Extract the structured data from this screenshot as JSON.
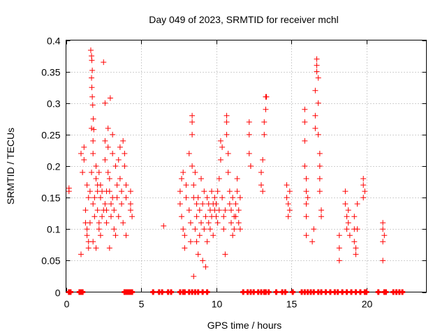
{
  "chart_data": {
    "type": "scatter",
    "title": "Day 049 of 2023, SRMTID for receiver mchl",
    "xlabel": "GPS time / hours",
    "ylabel": "SRMTID / TECUs",
    "xlim": [
      0,
      24
    ],
    "ylim": [
      0,
      0.4
    ],
    "xticks": [
      0,
      5,
      10,
      15,
      20
    ],
    "yticks": [
      0,
      0.05,
      0.1,
      0.15,
      0.2,
      0.25,
      0.3,
      0.35,
      0.4
    ],
    "xtick_labels": [
      "0",
      "5",
      "10",
      "15",
      "20"
    ],
    "ytick_labels": [
      "0",
      "0.05",
      "0.1",
      "0.15",
      "0.2",
      "0.25",
      "0.3",
      "0.35",
      "0.4"
    ],
    "grid": true,
    "marker": "+",
    "color": "#ff0000",
    "series": [
      {
        "name": "SRMTID",
        "points": [
          [
            0.2,
            0.165
          ],
          [
            0.2,
            0.16
          ],
          [
            1.0,
            0.06
          ],
          [
            1.0,
            0.22
          ],
          [
            1.1,
            0.19
          ],
          [
            1.2,
            0.21
          ],
          [
            1.2,
            0.23
          ],
          [
            1.3,
            0.13
          ],
          [
            1.3,
            0.11
          ],
          [
            1.4,
            0.1
          ],
          [
            1.4,
            0.09
          ],
          [
            1.4,
            0.17
          ],
          [
            1.5,
            0.07
          ],
          [
            1.5,
            0.08
          ],
          [
            1.5,
            0.15
          ],
          [
            1.6,
            0.11
          ],
          [
            1.6,
            0.16
          ],
          [
            1.7,
            0.19
          ],
          [
            1.7,
            0.26
          ],
          [
            1.8,
            0.08
          ],
          [
            1.8,
            0.14
          ],
          [
            1.8,
            0.22
          ],
          [
            1.8,
            0.24
          ],
          [
            1.65,
            0.384
          ],
          [
            1.7,
            0.375
          ],
          [
            1.72,
            0.368
          ],
          [
            1.75,
            0.352
          ],
          [
            1.7,
            0.34
          ],
          [
            1.72,
            0.325
          ],
          [
            1.75,
            0.31
          ],
          [
            1.78,
            0.297
          ],
          [
            1.82,
            0.275
          ],
          [
            1.85,
            0.258
          ],
          [
            1.9,
            0.12
          ],
          [
            1.9,
            0.15
          ],
          [
            2.0,
            0.18
          ],
          [
            2.0,
            0.2
          ],
          [
            2.0,
            0.07
          ],
          [
            2.1,
            0.17
          ],
          [
            2.1,
            0.16
          ],
          [
            2.1,
            0.13
          ],
          [
            2.2,
            0.19
          ],
          [
            2.2,
            0.11
          ],
          [
            2.2,
            0.1
          ],
          [
            2.3,
            0.15
          ],
          [
            2.3,
            0.17
          ],
          [
            2.3,
            0.09
          ],
          [
            2.4,
            0.12
          ],
          [
            2.4,
            0.16
          ],
          [
            2.5,
            0.13
          ],
          [
            2.5,
            0.365
          ],
          [
            2.6,
            0.3
          ],
          [
            2.6,
            0.24
          ],
          [
            2.6,
            0.21
          ],
          [
            2.6,
            0.14
          ],
          [
            2.7,
            0.13
          ],
          [
            2.7,
            0.16
          ],
          [
            2.7,
            0.11
          ],
          [
            2.8,
            0.26
          ],
          [
            2.8,
            0.23
          ],
          [
            2.8,
            0.19
          ],
          [
            2.9,
            0.18
          ],
          [
            2.9,
            0.16
          ],
          [
            2.9,
            0.07
          ],
          [
            2.95,
            0.308
          ],
          [
            3.0,
            0.12
          ],
          [
            3.0,
            0.14
          ],
          [
            3.1,
            0.25
          ],
          [
            3.1,
            0.22
          ],
          [
            3.1,
            0.15
          ],
          [
            3.2,
            0.13
          ],
          [
            3.2,
            0.1
          ],
          [
            3.3,
            0.09
          ],
          [
            3.3,
            0.2
          ],
          [
            3.4,
            0.17
          ],
          [
            3.4,
            0.15
          ],
          [
            3.5,
            0.12
          ],
          [
            3.5,
            0.21
          ],
          [
            3.6,
            0.23
          ],
          [
            3.6,
            0.18
          ],
          [
            3.7,
            0.16
          ],
          [
            3.7,
            0.14
          ],
          [
            3.8,
            0.11
          ],
          [
            3.8,
            0.24
          ],
          [
            3.9,
            0.22
          ],
          [
            3.9,
            0.2
          ],
          [
            4.0,
            0.17
          ],
          [
            4.0,
            0.15
          ],
          [
            4.0,
            0.09
          ],
          [
            4.3,
            0.16
          ],
          [
            4.3,
            0.13
          ],
          [
            4.3,
            0.14
          ],
          [
            4.4,
            0.12
          ],
          [
            6.5,
            0.105
          ],
          [
            7.6,
            0.16
          ],
          [
            7.6,
            0.14
          ],
          [
            7.7,
            0.12
          ],
          [
            7.7,
            0.18
          ],
          [
            7.8,
            0.19
          ],
          [
            7.8,
            0.1
          ],
          [
            7.9,
            0.09
          ],
          [
            7.9,
            0.07
          ],
          [
            8.0,
            0.17
          ],
          [
            8.0,
            0.15
          ],
          [
            8.2,
            0.22
          ],
          [
            8.2,
            0.13
          ],
          [
            8.3,
            0.08
          ],
          [
            8.3,
            0.11
          ],
          [
            8.4,
            0.25
          ],
          [
            8.4,
            0.28
          ],
          [
            8.4,
            0.27
          ],
          [
            8.4,
            0.2
          ],
          [
            8.5,
            0.15
          ],
          [
            8.5,
            0.17
          ],
          [
            8.5,
            0.025
          ],
          [
            8.6,
            0.19
          ],
          [
            8.6,
            0.1
          ],
          [
            8.7,
            0.14
          ],
          [
            8.7,
            0.12
          ],
          [
            8.7,
            0.08
          ],
          [
            8.8,
            0.06
          ],
          [
            8.8,
            0.15
          ],
          [
            8.9,
            0.13
          ],
          [
            8.9,
            0.09
          ],
          [
            9.0,
            0.11
          ],
          [
            9.0,
            0.18
          ],
          [
            9.1,
            0.05
          ],
          [
            9.1,
            0.14
          ],
          [
            9.2,
            0.16
          ],
          [
            9.2,
            0.1
          ],
          [
            9.3,
            0.12
          ],
          [
            9.3,
            0.04
          ],
          [
            9.4,
            0.15
          ],
          [
            9.4,
            0.08
          ],
          [
            9.5,
            0.14
          ],
          [
            9.5,
            0.11
          ],
          [
            9.6,
            0.13
          ],
          [
            9.6,
            0.1
          ],
          [
            9.7,
            0.12
          ],
          [
            9.7,
            0.16
          ],
          [
            9.8,
            0.14
          ],
          [
            9.8,
            0.09
          ],
          [
            9.9,
            0.13
          ],
          [
            9.9,
            0.15
          ],
          [
            10.0,
            0.12
          ],
          [
            10.0,
            0.14
          ],
          [
            10.1,
            0.11
          ],
          [
            10.1,
            0.16
          ],
          [
            10.2,
            0.13
          ],
          [
            10.2,
            0.18
          ],
          [
            10.3,
            0.21
          ],
          [
            10.3,
            0.24
          ],
          [
            10.4,
            0.23
          ],
          [
            10.4,
            0.15
          ],
          [
            10.5,
            0.12
          ],
          [
            10.5,
            0.1
          ],
          [
            10.6,
            0.13
          ],
          [
            10.6,
            0.06
          ],
          [
            10.7,
            0.28
          ],
          [
            10.7,
            0.27
          ],
          [
            10.7,
            0.25
          ],
          [
            10.8,
            0.22
          ],
          [
            10.8,
            0.19
          ],
          [
            10.9,
            0.16
          ],
          [
            10.9,
            0.14
          ],
          [
            11.0,
            0.13
          ],
          [
            11.0,
            0.11
          ],
          [
            11.1,
            0.15
          ],
          [
            11.1,
            0.09
          ],
          [
            11.2,
            0.12
          ],
          [
            11.2,
            0.1
          ],
          [
            11.3,
            0.14
          ],
          [
            11.3,
            0.12
          ],
          [
            11.4,
            0.18
          ],
          [
            11.4,
            0.16
          ],
          [
            11.5,
            0.13
          ],
          [
            11.5,
            0.11
          ],
          [
            11.6,
            0.15
          ],
          [
            11.6,
            0.1
          ],
          [
            12.2,
            0.27
          ],
          [
            12.2,
            0.25
          ],
          [
            12.2,
            0.22
          ],
          [
            12.3,
            0.2
          ],
          [
            12.3,
            0.2
          ],
          [
            13.0,
            0.17
          ],
          [
            13.0,
            0.19
          ],
          [
            13.1,
            0.16
          ],
          [
            13.1,
            0.21
          ],
          [
            13.2,
            0.25
          ],
          [
            13.2,
            0.27
          ],
          [
            13.3,
            0.29
          ],
          [
            13.3,
            0.31
          ],
          [
            13.35,
            0.31
          ],
          [
            14.7,
            0.17
          ],
          [
            14.7,
            0.15
          ],
          [
            14.8,
            0.14
          ],
          [
            14.8,
            0.12
          ],
          [
            14.9,
            0.16
          ],
          [
            14.9,
            0.13
          ],
          [
            15.9,
            0.29
          ],
          [
            15.9,
            0.27
          ],
          [
            15.9,
            0.24
          ],
          [
            15.9,
            0.2
          ],
          [
            16.0,
            0.18
          ],
          [
            16.0,
            0.16
          ],
          [
            16.0,
            0.14
          ],
          [
            16.0,
            0.12
          ],
          [
            16.0,
            0.09
          ],
          [
            16.1,
            0.15
          ],
          [
            16.4,
            0.08
          ],
          [
            16.5,
            0.1
          ],
          [
            16.6,
            0.26
          ],
          [
            16.6,
            0.28
          ],
          [
            16.6,
            0.32
          ],
          [
            16.7,
            0.35
          ],
          [
            16.7,
            0.37
          ],
          [
            16.7,
            0.36
          ],
          [
            16.8,
            0.34
          ],
          [
            16.8,
            0.3
          ],
          [
            16.8,
            0.25
          ],
          [
            16.9,
            0.22
          ],
          [
            16.9,
            0.2
          ],
          [
            16.9,
            0.18
          ],
          [
            16.9,
            0.16
          ],
          [
            17.0,
            0.13
          ],
          [
            17.0,
            0.12
          ],
          [
            18.2,
            0.09
          ],
          [
            18.2,
            0.07
          ],
          [
            18.2,
            0.05
          ],
          [
            18.6,
            0.16
          ],
          [
            18.6,
            0.14
          ],
          [
            18.7,
            0.12
          ],
          [
            18.7,
            0.1
          ],
          [
            18.8,
            0.13
          ],
          [
            18.8,
            0.11
          ],
          [
            18.9,
            0.09
          ],
          [
            19.2,
            0.12
          ],
          [
            19.2,
            0.1
          ],
          [
            19.2,
            0.08
          ],
          [
            19.3,
            0.07
          ],
          [
            19.3,
            0.06
          ],
          [
            19.4,
            0.14
          ],
          [
            19.4,
            0.1
          ],
          [
            19.8,
            0.18
          ],
          [
            19.8,
            0.17
          ],
          [
            19.8,
            0.15
          ],
          [
            19.9,
            0.16
          ],
          [
            21.1,
            0.11
          ],
          [
            21.1,
            0.1
          ],
          [
            21.1,
            0.08
          ],
          [
            21.1,
            0.05
          ],
          [
            21.2,
            0.09
          ]
        ],
        "zero_points": [
          0.2,
          0.3,
          0.9,
          1.0,
          1.1,
          3.9,
          4.0,
          4.1,
          4.2,
          4.3,
          4.4,
          5.8,
          6.2,
          6.4,
          6.8,
          7.0,
          7.6,
          7.8,
          7.9,
          8.2,
          8.4,
          8.6,
          8.8,
          9.1,
          9.4,
          11.8,
          12.1,
          12.3,
          12.5,
          12.8,
          13.0,
          13.2,
          13.3,
          13.5,
          14.0,
          14.4,
          14.6,
          15.1,
          15.7,
          15.9,
          16.1,
          16.3,
          16.5,
          16.8,
          17.0,
          17.3,
          17.6,
          17.9,
          18.1,
          18.4,
          18.7,
          19.0,
          19.3,
          19.6,
          19.9,
          20.0,
          20.8,
          21.2,
          21.3,
          21.8,
          22.0,
          22.2,
          22.4
        ]
      }
    ]
  }
}
